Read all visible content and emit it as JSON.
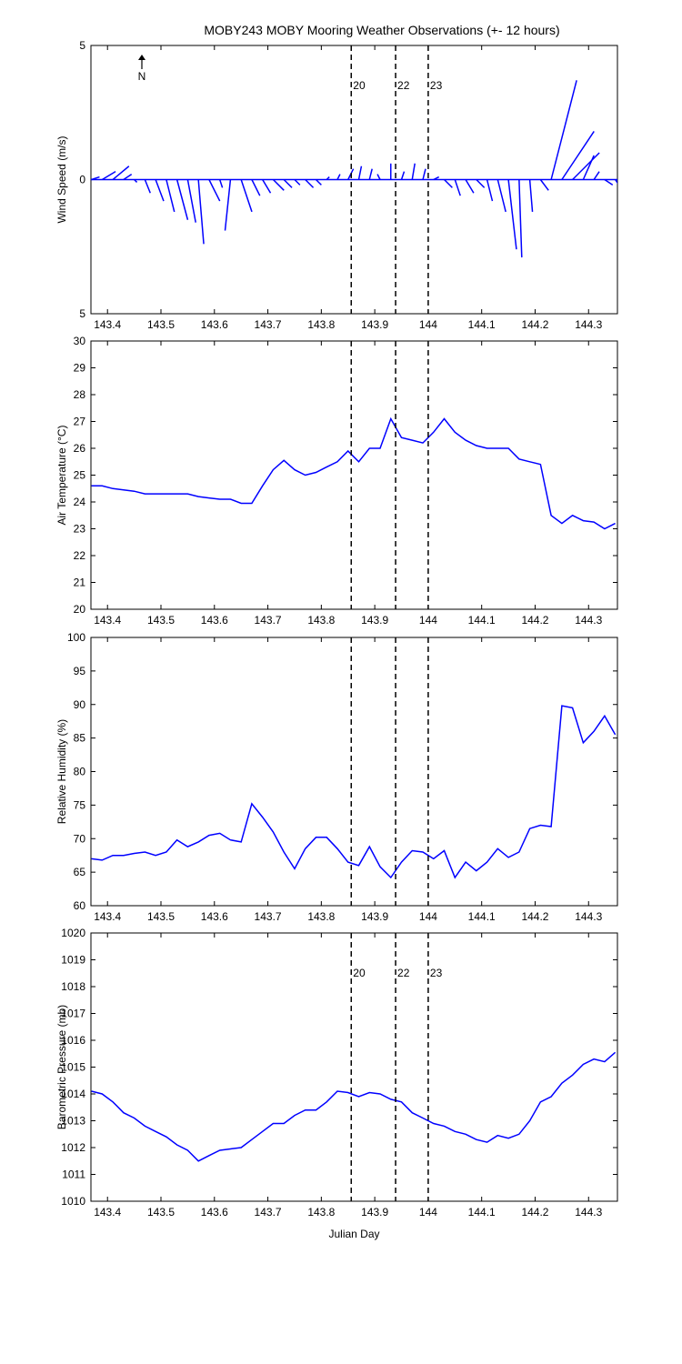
{
  "chart_data": [
    {
      "type": "stick",
      "title": "MOBY243 MOBY Mooring Weather Observations (+- 12 hours)",
      "ylabel": "Wind Speed (m/s)",
      "annotation": "N",
      "color": "#0000ff",
      "x": [
        143.37,
        143.39,
        143.41,
        143.43,
        143.45,
        143.47,
        143.49,
        143.51,
        143.53,
        143.55,
        143.57,
        143.59,
        143.61,
        143.63,
        143.65,
        143.67,
        143.69,
        143.71,
        143.73,
        143.75,
        143.77,
        143.79,
        143.81,
        143.83,
        143.85,
        143.87,
        143.89,
        143.91,
        143.93,
        143.95,
        143.97,
        143.99,
        144.01,
        144.03,
        144.05,
        144.07,
        144.09,
        144.11,
        144.13,
        144.15,
        144.17,
        144.19,
        144.21,
        144.23,
        144.25,
        144.27,
        144.29,
        144.31,
        144.33,
        144.35
      ],
      "u": [
        0.3,
        0.5,
        0.6,
        0.3,
        0.1,
        0.2,
        0.3,
        0.3,
        0.4,
        0.3,
        0.2,
        0.4,
        0.1,
        -0.2,
        0.4,
        0.3,
        0.3,
        0.4,
        0.3,
        0.2,
        0.3,
        0.2,
        0.1,
        0.1,
        0.2,
        0.1,
        0.1,
        -0.1,
        0.0,
        0.1,
        0.1,
        0.1,
        0.2,
        0.3,
        0.2,
        0.3,
        0.3,
        0.2,
        0.3,
        0.3,
        0.1,
        0.1,
        0.3,
        0.95,
        1.2,
        1.0,
        0.4,
        0.2,
        0.3,
        0.2
      ],
      "v": [
        0.1,
        0.3,
        0.5,
        0.2,
        -0.1,
        -0.5,
        -0.8,
        -1.2,
        -1.5,
        -1.6,
        -2.4,
        -0.8,
        -0.3,
        -1.9,
        -1.2,
        -0.6,
        -0.5,
        -0.4,
        -0.3,
        -0.2,
        -0.3,
        -0.2,
        0.1,
        0.2,
        0.4,
        0.5,
        0.4,
        0.2,
        0.6,
        0.3,
        0.6,
        0.4,
        0.1,
        -0.3,
        -0.6,
        -0.5,
        -0.3,
        -0.8,
        -1.2,
        -2.6,
        -2.9,
        -1.2,
        -0.4,
        3.7,
        1.8,
        1.0,
        0.9,
        0.3,
        -0.2,
        -0.3
      ],
      "xlim": [
        143.369,
        144.354
      ],
      "xticks": [
        143.4,
        143.5,
        143.6,
        143.7,
        143.8,
        143.9,
        144,
        144.1,
        144.2,
        144.3
      ],
      "ylim": [
        -5,
        5
      ],
      "yticks": [
        {
          "value": -5,
          "label": "5"
        },
        0,
        5
      ],
      "vlines": [
        143.856,
        143.939,
        144.0
      ],
      "vline_labels": [
        "20",
        "22",
        "23"
      ],
      "vline_label_color": "#cc2222"
    },
    {
      "type": "line",
      "ylabel": "Air Temperature (°C)",
      "color": "#0000ff",
      "x": [
        143.37,
        143.39,
        143.41,
        143.43,
        143.45,
        143.47,
        143.49,
        143.51,
        143.53,
        143.55,
        143.57,
        143.59,
        143.61,
        143.63,
        143.65,
        143.67,
        143.69,
        143.71,
        143.73,
        143.75,
        143.77,
        143.79,
        143.81,
        143.83,
        143.85,
        143.87,
        143.89,
        143.91,
        143.93,
        143.95,
        143.97,
        143.99,
        144.01,
        144.03,
        144.05,
        144.07,
        144.09,
        144.11,
        144.13,
        144.15,
        144.17,
        144.19,
        144.21,
        144.23,
        144.25,
        144.27,
        144.29,
        144.31,
        144.33,
        144.35
      ],
      "values": [
        24.6,
        24.6,
        24.5,
        24.45,
        24.4,
        24.3,
        24.3,
        24.3,
        24.3,
        24.3,
        24.2,
        24.15,
        24.1,
        24.1,
        23.95,
        23.95,
        24.6,
        25.2,
        25.55,
        25.2,
        25.0,
        25.1,
        25.3,
        25.5,
        25.9,
        25.5,
        26.0,
        26.0,
        27.1,
        26.4,
        26.3,
        26.2,
        26.6,
        27.1,
        26.6,
        26.3,
        26.1,
        26.0,
        26.0,
        26.0,
        25.6,
        25.5,
        25.4,
        23.5,
        23.2,
        23.5,
        23.3,
        23.25,
        23.0,
        23.2
      ],
      "xlim": [
        143.369,
        144.354
      ],
      "xticks": [
        143.4,
        143.5,
        143.6,
        143.7,
        143.8,
        143.9,
        144,
        144.1,
        144.2,
        144.3
      ],
      "ylim": [
        20,
        30
      ],
      "yticks": [
        20,
        21,
        22,
        23,
        24,
        25,
        26,
        27,
        28,
        29,
        30
      ],
      "vlines": [
        143.856,
        143.939,
        144.0
      ]
    },
    {
      "type": "line",
      "ylabel": "Relative Humidity (%)",
      "color": "#0000ff",
      "x": [
        143.37,
        143.39,
        143.41,
        143.43,
        143.45,
        143.47,
        143.49,
        143.51,
        143.53,
        143.55,
        143.57,
        143.59,
        143.61,
        143.63,
        143.65,
        143.67,
        143.69,
        143.71,
        143.73,
        143.75,
        143.77,
        143.79,
        143.81,
        143.83,
        143.85,
        143.87,
        143.89,
        143.91,
        143.93,
        143.95,
        143.97,
        143.99,
        144.01,
        144.03,
        144.05,
        144.07,
        144.09,
        144.11,
        144.13,
        144.15,
        144.17,
        144.19,
        144.21,
        144.23,
        144.25,
        144.27,
        144.29,
        144.31,
        144.33,
        144.35
      ],
      "values": [
        67,
        66.8,
        67.5,
        67.5,
        67.8,
        68,
        67.5,
        68,
        69.8,
        68.8,
        69.5,
        70.5,
        70.8,
        69.8,
        69.5,
        75.2,
        73.2,
        71,
        68,
        65.5,
        68.5,
        70.2,
        70.2,
        68.5,
        66.5,
        66,
        68.8,
        65.8,
        64.2,
        66.5,
        68.2,
        68,
        67,
        68.2,
        64.2,
        66.5,
        65.2,
        66.5,
        68.5,
        67.2,
        68,
        71.5,
        72,
        71.8,
        89.8,
        89.5,
        84.3,
        86,
        88.3,
        85.5
      ],
      "xlim": [
        143.369,
        144.354
      ],
      "xticks": [
        143.4,
        143.5,
        143.6,
        143.7,
        143.8,
        143.9,
        144,
        144.1,
        144.2,
        144.3
      ],
      "ylim": [
        60,
        100
      ],
      "yticks": [
        60,
        65,
        70,
        75,
        80,
        85,
        90,
        95,
        100
      ],
      "vlines": [
        143.856,
        143.939,
        144.0
      ]
    },
    {
      "type": "line",
      "ylabel": "Barometric Pressure (mb)",
      "xlabel": "Julian Day",
      "color": "#0000ff",
      "x": [
        143.37,
        143.39,
        143.41,
        143.43,
        143.45,
        143.47,
        143.49,
        143.51,
        143.53,
        143.55,
        143.57,
        143.59,
        143.61,
        143.63,
        143.65,
        143.67,
        143.69,
        143.71,
        143.73,
        143.75,
        143.77,
        143.79,
        143.81,
        143.83,
        143.85,
        143.87,
        143.89,
        143.91,
        143.93,
        143.95,
        143.97,
        143.99,
        144.01,
        144.03,
        144.05,
        144.07,
        144.09,
        144.11,
        144.13,
        144.15,
        144.17,
        144.19,
        144.21,
        144.23,
        144.25,
        144.27,
        144.29,
        144.31,
        144.33,
        144.35
      ],
      "values": [
        1014.1,
        1014.0,
        1013.7,
        1013.3,
        1013.1,
        1012.8,
        1012.6,
        1012.4,
        1012.1,
        1011.9,
        1011.5,
        1011.7,
        1011.9,
        1011.95,
        1012.0,
        1012.3,
        1012.6,
        1012.9,
        1012.9,
        1013.2,
        1013.4,
        1013.4,
        1013.7,
        1014.1,
        1014.05,
        1013.9,
        1014.05,
        1014.0,
        1013.8,
        1013.7,
        1013.3,
        1013.1,
        1012.9,
        1012.8,
        1012.6,
        1012.5,
        1012.3,
        1012.2,
        1012.45,
        1012.35,
        1012.5,
        1013.0,
        1013.7,
        1013.9,
        1014.4,
        1014.7,
        1015.1,
        1015.3,
        1015.2,
        1015.55
      ],
      "xlim": [
        143.369,
        144.354
      ],
      "xticks": [
        143.4,
        143.5,
        143.6,
        143.7,
        143.8,
        143.9,
        144,
        144.1,
        144.2,
        144.3
      ],
      "ylim": [
        1010,
        1020
      ],
      "yticks": [
        1010,
        1011,
        1012,
        1013,
        1014,
        1015,
        1016,
        1017,
        1018,
        1019,
        1020
      ],
      "vlines": [
        143.856,
        143.939,
        144.0
      ],
      "vline_labels": [
        "20",
        "22",
        "23"
      ],
      "vline_label_color": "#cc2222"
    }
  ]
}
